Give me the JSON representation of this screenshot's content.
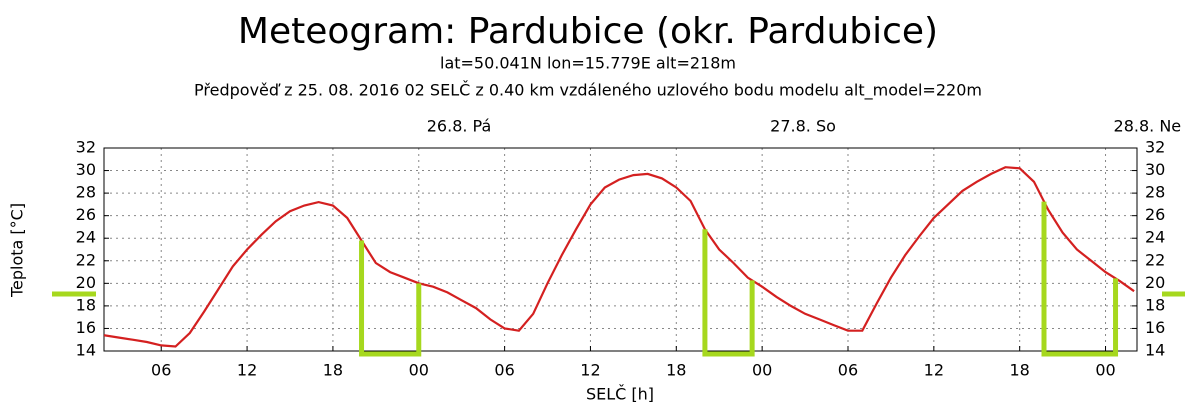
{
  "chart_data": {
    "type": "line",
    "title": "Meteogram: Pardubice (okr. Pardubice)",
    "subtitle": "lat=50.041N lon=15.779E alt=218m",
    "note": "Předpověď z 25. 08. 2016 02 SELČ z 0.40 km vzdáleného uzlového bodu modelu alt_model=220m",
    "xlabel": "SELČ [h]",
    "ylabel": "Teplota [°C]",
    "day_labels": [
      {
        "value": 24,
        "label": "26.8. Pá"
      },
      {
        "value": 48,
        "label": "27.8. So"
      },
      {
        "value": 72,
        "label": "28.8. Ne"
      }
    ],
    "x": [
      2,
      3,
      4,
      5,
      6,
      7,
      8,
      9,
      10,
      11,
      12,
      13,
      14,
      15,
      16,
      17,
      18,
      19,
      20,
      21,
      22,
      23,
      24,
      25,
      26,
      27,
      28,
      29,
      30,
      31,
      32,
      33,
      34,
      35,
      36,
      37,
      38,
      39,
      40,
      41,
      42,
      43,
      44,
      45,
      46,
      47,
      48,
      49,
      50,
      51,
      52,
      53,
      54,
      55,
      56,
      57,
      58,
      59,
      60,
      61,
      62,
      63,
      64,
      65,
      66,
      67,
      68,
      69,
      70,
      71,
      72,
      73,
      74
    ],
    "series": [
      {
        "name": "Teplota",
        "color": "#d42020",
        "values": [
          15.4,
          15.2,
          15.0,
          14.8,
          14.5,
          14.4,
          15.6,
          17.5,
          19.5,
          21.5,
          23.0,
          24.3,
          25.5,
          26.4,
          26.9,
          27.2,
          26.9,
          25.8,
          23.8,
          21.8,
          21.0,
          20.5,
          20.0,
          19.7,
          19.2,
          18.5,
          17.8,
          16.8,
          16.0,
          15.8,
          17.3,
          20.0,
          22.5,
          24.8,
          27.0,
          28.5,
          29.2,
          29.6,
          29.7,
          29.3,
          28.5,
          27.3,
          24.8,
          23.0,
          21.8,
          20.5,
          19.7,
          18.8,
          18.0,
          17.3,
          16.8,
          16.3,
          15.8,
          15.8,
          18.2,
          20.5,
          22.5,
          24.2,
          25.8,
          27.0,
          28.2,
          29.0,
          29.7,
          30.3,
          30.2,
          29.0,
          26.5,
          24.5,
          23.0,
          22.0,
          21.0,
          20.2,
          19.3
        ]
      }
    ],
    "highlights": [
      [
        20,
        24
      ],
      [
        44,
        47.3
      ],
      [
        67.7,
        72.7
      ]
    ],
    "highlight_color": "#a6d81e",
    "xlim": [
      2,
      74.2
    ],
    "xticks": [
      {
        "value": 6,
        "label": "06"
      },
      12,
      18,
      {
        "value": 24,
        "label": "00"
      },
      {
        "value": 30,
        "label": "06"
      },
      {
        "value": 36,
        "label": "12"
      },
      {
        "value": 42,
        "label": "18"
      },
      {
        "value": 48,
        "label": "00"
      },
      {
        "value": 54,
        "label": "06"
      },
      {
        "value": 60,
        "label": "12"
      },
      {
        "value": 66,
        "label": "18"
      },
      {
        "value": 72,
        "label": "00"
      }
    ],
    "ylim": [
      14,
      32
    ],
    "yticks": [
      14,
      16,
      18,
      20,
      22,
      24,
      26,
      28,
      30,
      32
    ],
    "grid": true
  }
}
